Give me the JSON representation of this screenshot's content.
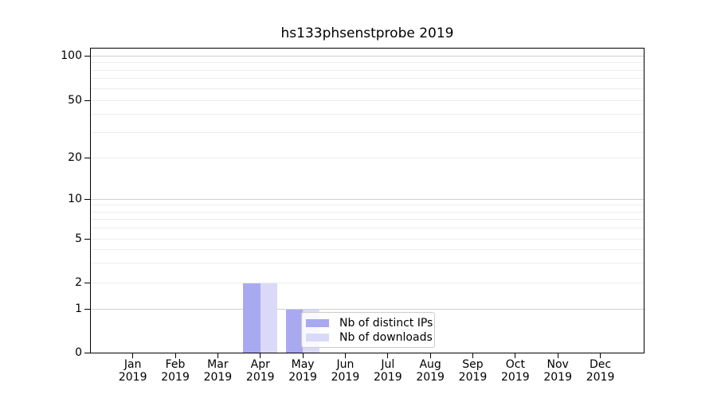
{
  "title": "hs133phsenstprobe 2019",
  "chart_data": {
    "type": "bar",
    "title": "hs133phsenstprobe 2019",
    "year": "2019",
    "months": [
      "Jan",
      "Feb",
      "Mar",
      "Apr",
      "May",
      "Jun",
      "Jul",
      "Aug",
      "Sep",
      "Oct",
      "Nov",
      "Dec"
    ],
    "categories": [
      "Jan 2019",
      "Feb 2019",
      "Mar 2019",
      "Apr 2019",
      "May 2019",
      "Jun 2019",
      "Jul 2019",
      "Aug 2019",
      "Sep 2019",
      "Oct 2019",
      "Nov 2019",
      "Dec 2019"
    ],
    "series": [
      {
        "name": "Nb of distinct IPs",
        "color": "#a9a9f1",
        "values": [
          0,
          0,
          0,
          2,
          1,
          0,
          0,
          0,
          0,
          0,
          0,
          0
        ]
      },
      {
        "name": "Nb of downloads",
        "color": "#dadaf8",
        "values": [
          0,
          0,
          0,
          2,
          1,
          0,
          0,
          0,
          0,
          0,
          0,
          0
        ]
      }
    ],
    "ytick_labels": [
      "0",
      "1",
      "2",
      "5",
      "10",
      "20",
      "50",
      "100"
    ],
    "yticks": [
      0,
      1,
      2,
      5,
      10,
      20,
      50,
      100
    ],
    "minor_grid_values": [
      2,
      3,
      4,
      5,
      6,
      7,
      8,
      9,
      20,
      30,
      40,
      50,
      60,
      70,
      80,
      90
    ],
    "major_grid_values": [
      1,
      10,
      100
    ],
    "ylim": [
      0,
      115
    ],
    "yscale": "log-like",
    "grid": {
      "horizontal": true,
      "vertical": false,
      "major_color": "#d0d0d0",
      "minor_color": "#ececec"
    },
    "legend": {
      "frame": true,
      "items": [
        "Nb of distinct IPs",
        "Nb of downloads"
      ]
    }
  }
}
